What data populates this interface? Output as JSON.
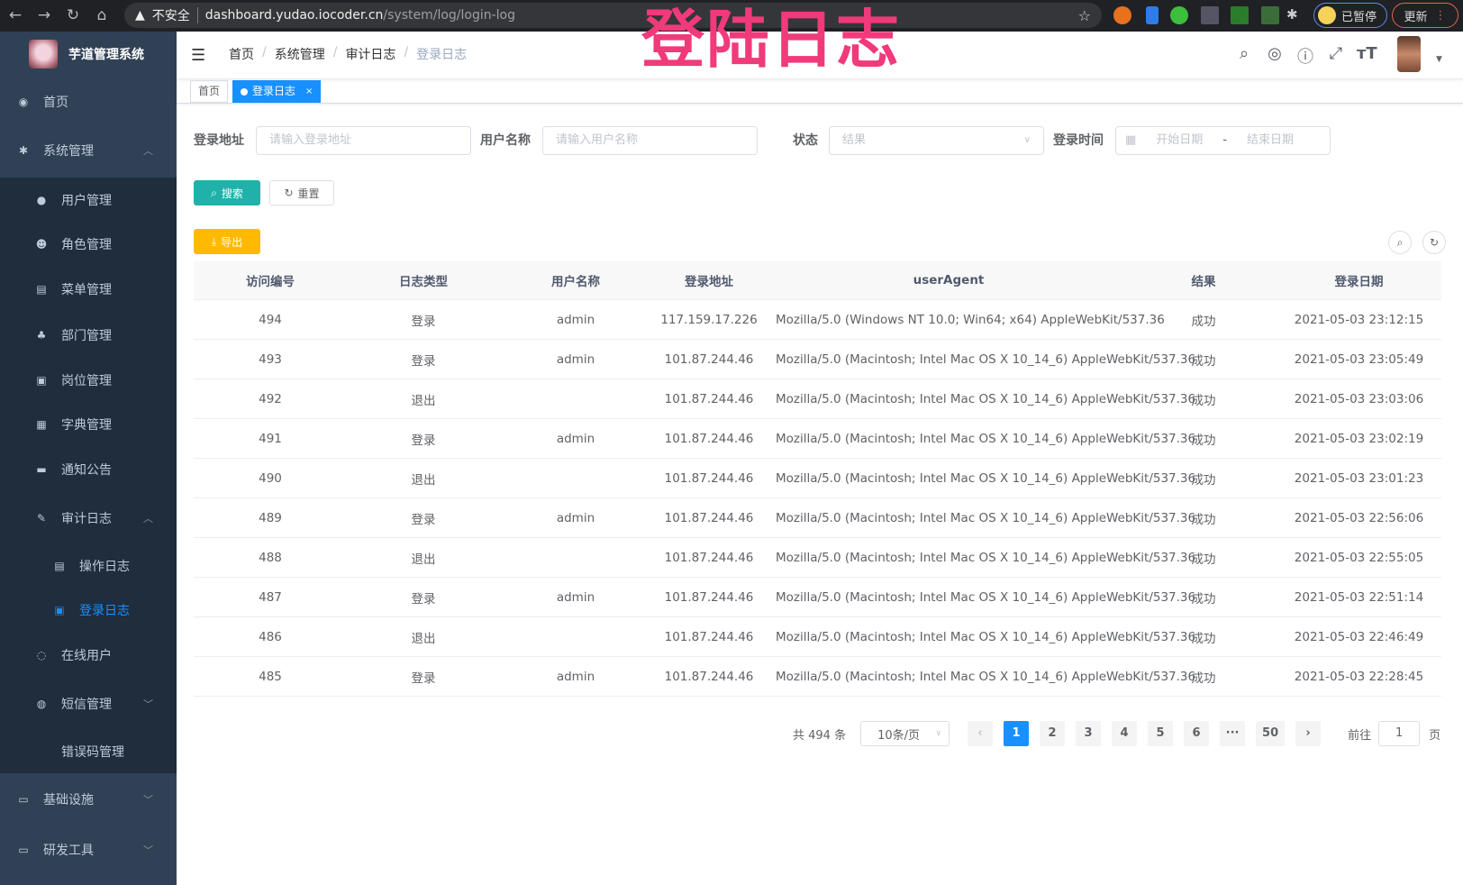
{
  "browser": {
    "security": "不安全",
    "url_host": "dashboard.yudao.iocoder.cn",
    "url_path": "/system/log/login-log",
    "paused_label": "已暂停",
    "update_label": "更新"
  },
  "overlay_title": "登陆日志",
  "sidebar": {
    "app_title": "芋道管理系统",
    "items": [
      {
        "label": "首页",
        "icon": "dashboard-icon"
      },
      {
        "label": "系统管理",
        "icon": "gear-icon",
        "expanded": true
      },
      {
        "label": "用户管理",
        "icon": "user-icon"
      },
      {
        "label": "角色管理",
        "icon": "peoples-icon"
      },
      {
        "label": "菜单管理",
        "icon": "tree-table-icon"
      },
      {
        "label": "部门管理",
        "icon": "tree-icon"
      },
      {
        "label": "岗位管理",
        "icon": "post-icon"
      },
      {
        "label": "字典管理",
        "icon": "dict-icon"
      },
      {
        "label": "通知公告",
        "icon": "message-icon"
      },
      {
        "label": "审计日志",
        "icon": "edit-icon",
        "expanded": true
      },
      {
        "label": "操作日志",
        "icon": "form-icon"
      },
      {
        "label": "登录日志",
        "icon": "logininfor-icon",
        "active": true
      },
      {
        "label": "在线用户",
        "icon": "online-icon"
      },
      {
        "label": "短信管理",
        "icon": "validcode-icon"
      },
      {
        "label": "错误码管理",
        "icon": "code-icon"
      },
      {
        "label": "基础设施",
        "icon": "monitor-icon"
      },
      {
        "label": "研发工具",
        "icon": "tool-icon"
      }
    ]
  },
  "breadcrumb": [
    "首页",
    "系统管理",
    "审计日志",
    "登录日志"
  ],
  "tags": {
    "home": "首页",
    "current": "登录日志"
  },
  "filters": {
    "address": {
      "label": "登录地址",
      "placeholder": "请输入登录地址"
    },
    "username": {
      "label": "用户名称",
      "placeholder": "请输入用户名称"
    },
    "status": {
      "label": "状态",
      "placeholder": "结果"
    },
    "time": {
      "label": "登录时间",
      "start": "开始日期",
      "sep": "-",
      "end": "结束日期"
    }
  },
  "buttons": {
    "search": "搜索",
    "reset": "重置",
    "export": "导出"
  },
  "table": {
    "columns": [
      "访问编号",
      "日志类型",
      "用户名称",
      "登录地址",
      "userAgent",
      "结果",
      "登录日期"
    ],
    "rows": [
      [
        "494",
        "登录",
        "admin",
        "117.159.17.226",
        "Mozilla/5.0 (Windows NT 10.0; Win64; x64) AppleWebKit/537.36",
        "成功",
        "2021-05-03 23:12:15"
      ],
      [
        "493",
        "登录",
        "admin",
        "101.87.244.46",
        "Mozilla/5.0 (Macintosh; Intel Mac OS X 10_14_6) AppleWebKit/537.36",
        "成功",
        "2021-05-03 23:05:49"
      ],
      [
        "492",
        "退出",
        "",
        "101.87.244.46",
        "Mozilla/5.0 (Macintosh; Intel Mac OS X 10_14_6) AppleWebKit/537.36",
        "成功",
        "2021-05-03 23:03:06"
      ],
      [
        "491",
        "登录",
        "admin",
        "101.87.244.46",
        "Mozilla/5.0 (Macintosh; Intel Mac OS X 10_14_6) AppleWebKit/537.36",
        "成功",
        "2021-05-03 23:02:19"
      ],
      [
        "490",
        "退出",
        "",
        "101.87.244.46",
        "Mozilla/5.0 (Macintosh; Intel Mac OS X 10_14_6) AppleWebKit/537.36",
        "成功",
        "2021-05-03 23:01:23"
      ],
      [
        "489",
        "登录",
        "admin",
        "101.87.244.46",
        "Mozilla/5.0 (Macintosh; Intel Mac OS X 10_14_6) AppleWebKit/537.36",
        "成功",
        "2021-05-03 22:56:06"
      ],
      [
        "488",
        "退出",
        "",
        "101.87.244.46",
        "Mozilla/5.0 (Macintosh; Intel Mac OS X 10_14_6) AppleWebKit/537.36",
        "成功",
        "2021-05-03 22:55:05"
      ],
      [
        "487",
        "登录",
        "admin",
        "101.87.244.46",
        "Mozilla/5.0 (Macintosh; Intel Mac OS X 10_14_6) AppleWebKit/537.36",
        "成功",
        "2021-05-03 22:51:14"
      ],
      [
        "486",
        "退出",
        "",
        "101.87.244.46",
        "Mozilla/5.0 (Macintosh; Intel Mac OS X 10_14_6) AppleWebKit/537.36",
        "成功",
        "2021-05-03 22:46:49"
      ],
      [
        "485",
        "登录",
        "admin",
        "101.87.244.46",
        "Mozilla/5.0 (Macintosh; Intel Mac OS X 10_14_6) AppleWebKit/537.36",
        "成功",
        "2021-05-03 22:28:45"
      ]
    ]
  },
  "pagination": {
    "total": "共 494 条",
    "page_size": "10条/页",
    "pages": [
      "1",
      "2",
      "3",
      "4",
      "5",
      "6",
      "···",
      "50"
    ],
    "current": "1",
    "goto_label": "前往",
    "goto_value": "1",
    "goto_suffix": "页"
  },
  "colors": {
    "sidebar": "#304156",
    "submenu": "#1f2d3d",
    "primary": "#1890ff",
    "search": "#13c2c2",
    "export": "#ffba00",
    "overlay": "#f03a7a"
  }
}
